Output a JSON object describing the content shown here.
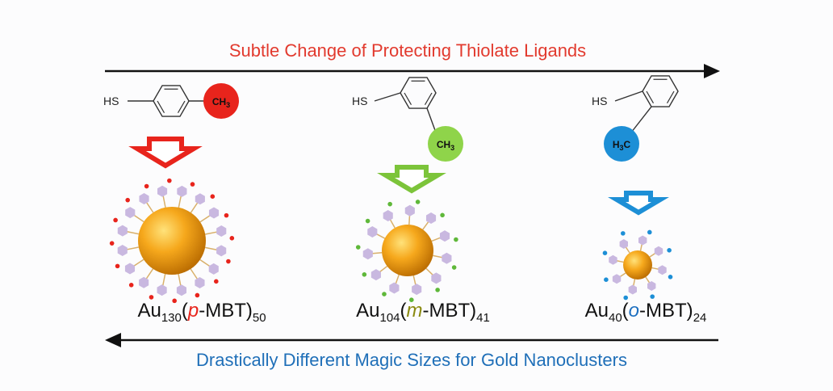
{
  "top_arrow_label": "Subtle Change of Protecting Thiolate Ligands",
  "bottom_arrow_label": "Drastically Different Magic Sizes for Gold Nanoclusters",
  "ligands": [
    {
      "thiol": "HS",
      "group": [
        "CH",
        "3"
      ]
    },
    {
      "thiol": "HS",
      "group": [
        "CH",
        "3"
      ]
    },
    {
      "thiol": "HS",
      "group": [
        "H",
        "3",
        "C"
      ]
    }
  ],
  "clusters": [
    {
      "metal": "Au",
      "metal_count": 130,
      "open": "(",
      "isomer": "p",
      "ligand": "-MBT)",
      "ligand_count": 50
    },
    {
      "metal": "Au",
      "metal_count": 104,
      "open": "(",
      "isomer": "m",
      "ligand": "-MBT)",
      "ligand_count": 41
    },
    {
      "metal": "Au",
      "metal_count": 40,
      "open": "(",
      "isomer": "o",
      "ligand": "-MBT)",
      "ligand_count": 24
    }
  ]
}
